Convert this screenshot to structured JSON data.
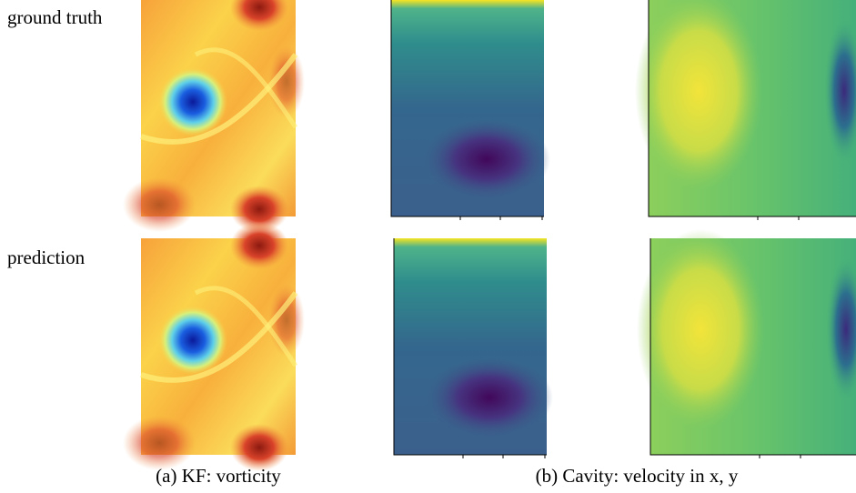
{
  "row_labels": [
    "ground truth",
    "prediction"
  ],
  "captions": [
    "(a) KF: vorticity",
    "(b) Cavity: velocity in x, y"
  ]
}
